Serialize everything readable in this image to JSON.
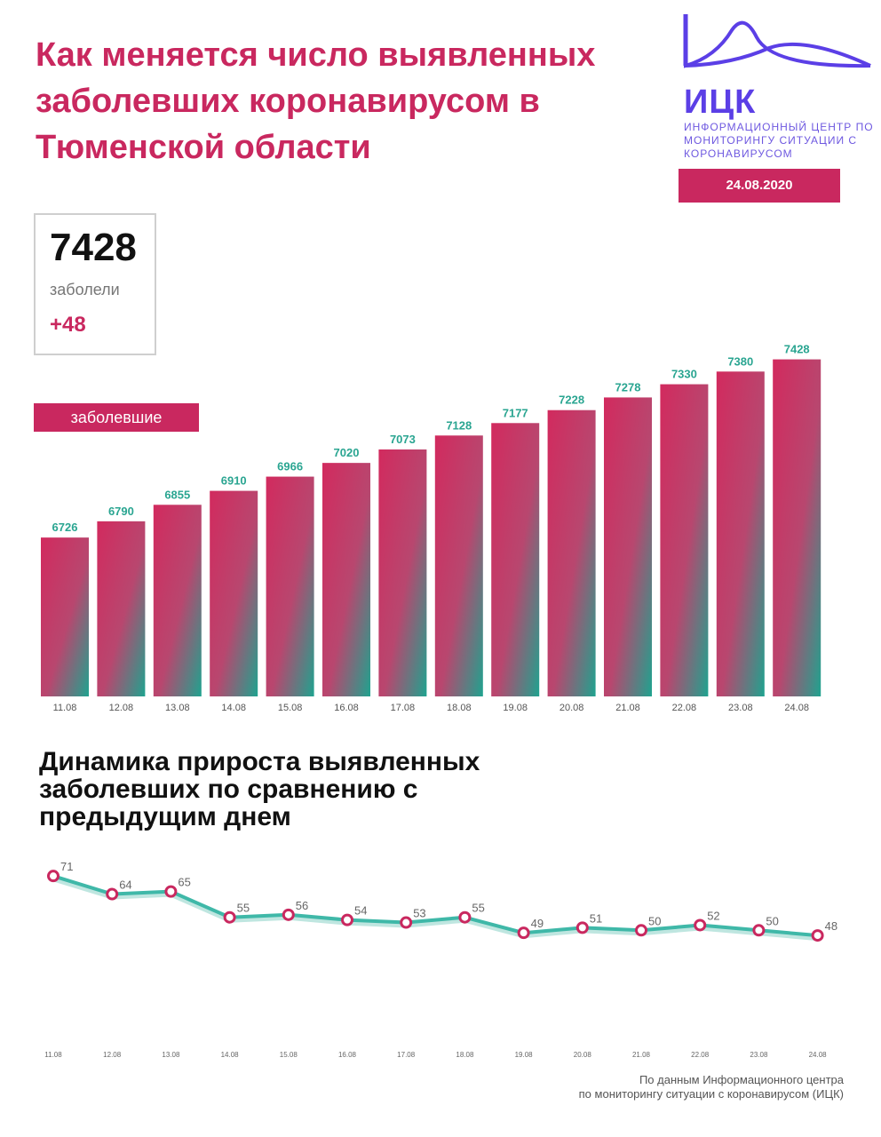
{
  "header": {
    "title": "Как меняется число выявленных заболевших коронавирусом в Тюменской области",
    "date": "24.08.2020"
  },
  "logo": {
    "abbr": "ИЦК",
    "subtitle": "Информационный центр по мониторингу ситуации с коронавирусом"
  },
  "summary": {
    "value": "7428",
    "label": "заболели",
    "delta": "+48"
  },
  "series_badge": "заболевшие",
  "colors": {
    "accent": "#c9285f",
    "teal": "#2aa591",
    "line": "#3fb8a8",
    "logo": "#5b3fe6"
  },
  "chart_data": [
    {
      "type": "bar",
      "categories": [
        "11.08",
        "12.08",
        "13.08",
        "14.08",
        "15.08",
        "16.08",
        "17.08",
        "18.08",
        "19.08",
        "20.08",
        "21.08",
        "22.08",
        "23.08",
        "24.08"
      ],
      "series": [
        {
          "name": "заболевшие",
          "values": [
            6726,
            6790,
            6855,
            6910,
            6966,
            7020,
            7073,
            7128,
            7177,
            7228,
            7278,
            7330,
            7380,
            7428
          ]
        }
      ],
      "title": "",
      "ylim": [
        6100,
        7500
      ]
    },
    {
      "type": "line",
      "title": "Динамика прироста выявленных заболевших по сравнению с предыдущим днем",
      "categories": [
        "11.08",
        "12.08",
        "13.08",
        "14.08",
        "15.08",
        "16.08",
        "17.08",
        "18.08",
        "19.08",
        "20.08",
        "21.08",
        "22.08",
        "23.08",
        "24.08"
      ],
      "values": [
        71,
        64,
        65,
        55,
        56,
        54,
        53,
        55,
        49,
        51,
        50,
        52,
        50,
        48
      ],
      "ylim": [
        25,
        80
      ]
    }
  ],
  "footer": {
    "line1": "По данным Информационного центра",
    "line2": "по мониторингу ситуации с коронавирусом (ИЦК)"
  }
}
